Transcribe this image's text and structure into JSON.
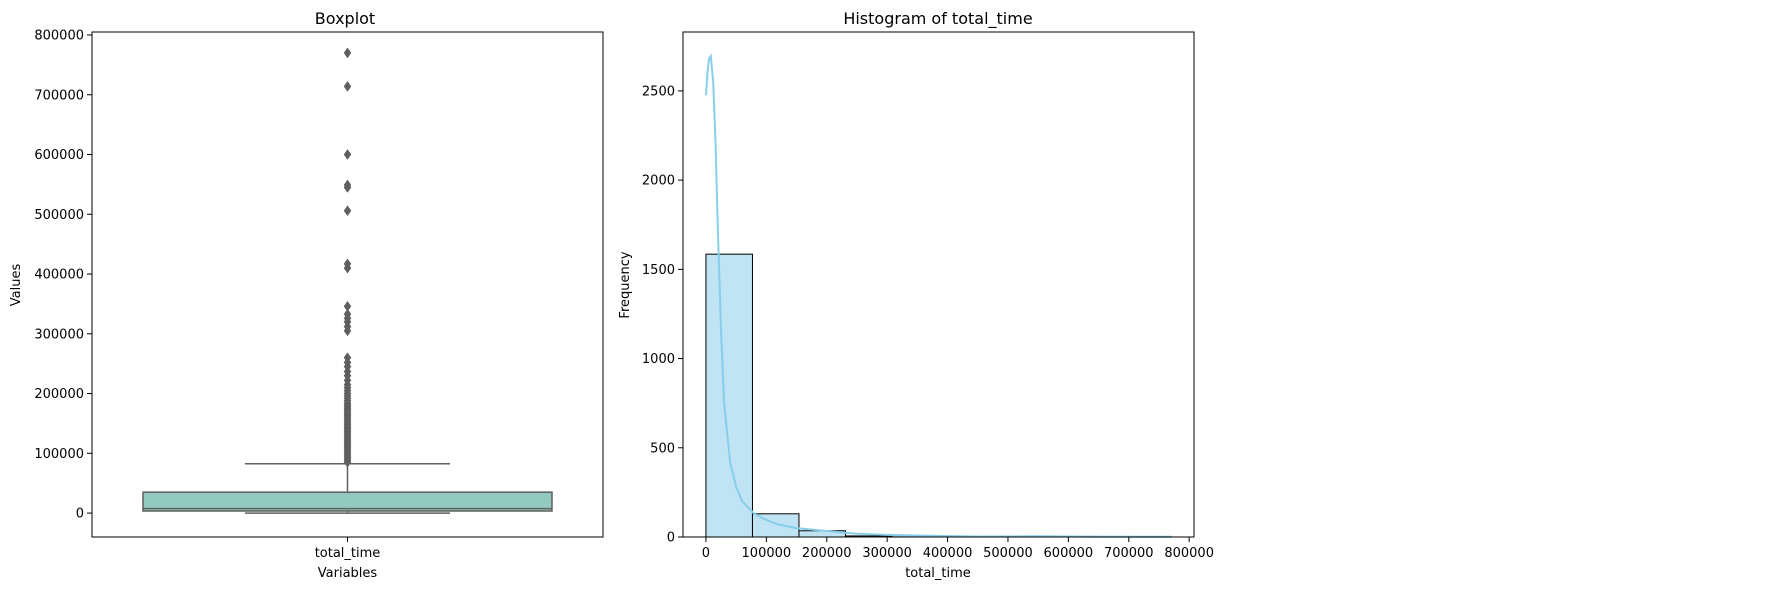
{
  "chart_data": [
    {
      "type": "box",
      "title": "Boxplot",
      "xlabel": "Variables",
      "ylabel": "Values",
      "categories": [
        "total_time"
      ],
      "ylim": [
        -40000,
        805000
      ],
      "yticks": [
        0,
        100000,
        200000,
        300000,
        400000,
        500000,
        600000,
        700000,
        800000
      ],
      "box": {
        "whislo": 0,
        "q1": 3500,
        "median": 7500,
        "q3": 35000,
        "whishi": 82500
      },
      "fliers": [
        85000,
        88000,
        91000,
        94000,
        97000,
        100000,
        103000,
        106000,
        109000,
        112000,
        115000,
        118000,
        121000,
        124000,
        127000,
        130000,
        133000,
        136000,
        139000,
        142000,
        145000,
        148000,
        151000,
        154000,
        157000,
        160000,
        163000,
        166000,
        169000,
        172000,
        175000,
        178000,
        181000,
        184000,
        188000,
        192000,
        196000,
        200000,
        205000,
        210000,
        215000,
        222000,
        230000,
        237000,
        245000,
        252000,
        260000,
        305000,
        312000,
        320000,
        326000,
        333000,
        346000,
        410000,
        417000,
        506000,
        545000,
        549000,
        600000,
        714000,
        770000
      ],
      "color": "#93cabf",
      "line_color": "#5f5f5f"
    },
    {
      "type": "histogram",
      "title": "Histogram of total_time",
      "xlabel": "total_time",
      "ylabel": "Frequency",
      "xlim": [
        -38000,
        808000
      ],
      "ylim": [
        0,
        2830
      ],
      "xticks": [
        0,
        100000,
        200000,
        300000,
        400000,
        500000,
        600000,
        700000,
        800000
      ],
      "yticks": [
        0,
        500,
        1000,
        1500,
        2000,
        2500
      ],
      "bins": [
        {
          "x0": 0,
          "x1": 77000,
          "count": 1585
        },
        {
          "x0": 77000,
          "x1": 154000,
          "count": 130
        },
        {
          "x0": 154000,
          "x1": 231000,
          "count": 35
        },
        {
          "x0": 231000,
          "x1": 308000,
          "count": 6
        },
        {
          "x0": 308000,
          "x1": 385000,
          "count": 8
        },
        {
          "x0": 385000,
          "x1": 462000,
          "count": 2
        },
        {
          "x0": 462000,
          "x1": 539000,
          "count": 1
        },
        {
          "x0": 539000,
          "x1": 616000,
          "count": 3
        },
        {
          "x0": 616000,
          "x1": 693000,
          "count": 0
        },
        {
          "x0": 693000,
          "x1": 770000,
          "count": 2
        }
      ],
      "kde": [
        [
          0,
          2475
        ],
        [
          2500,
          2600
        ],
        [
          5000,
          2680
        ],
        [
          8000,
          2695
        ],
        [
          12000,
          2550
        ],
        [
          16000,
          2200
        ],
        [
          20000,
          1700
        ],
        [
          25000,
          1150
        ],
        [
          30000,
          750
        ],
        [
          40000,
          420
        ],
        [
          50000,
          280
        ],
        [
          60000,
          200
        ],
        [
          80000,
          130
        ],
        [
          100000,
          95
        ],
        [
          120000,
          70
        ],
        [
          150000,
          50
        ],
        [
          180000,
          40
        ],
        [
          210000,
          30
        ],
        [
          250000,
          18
        ],
        [
          300000,
          12
        ],
        [
          330000,
          10
        ],
        [
          380000,
          6
        ],
        [
          450000,
          3
        ],
        [
          550000,
          4
        ],
        [
          650000,
          2
        ],
        [
          770000,
          1
        ]
      ],
      "bar_color": "#c0e4f3",
      "kde_color": "#87ceeb"
    }
  ]
}
